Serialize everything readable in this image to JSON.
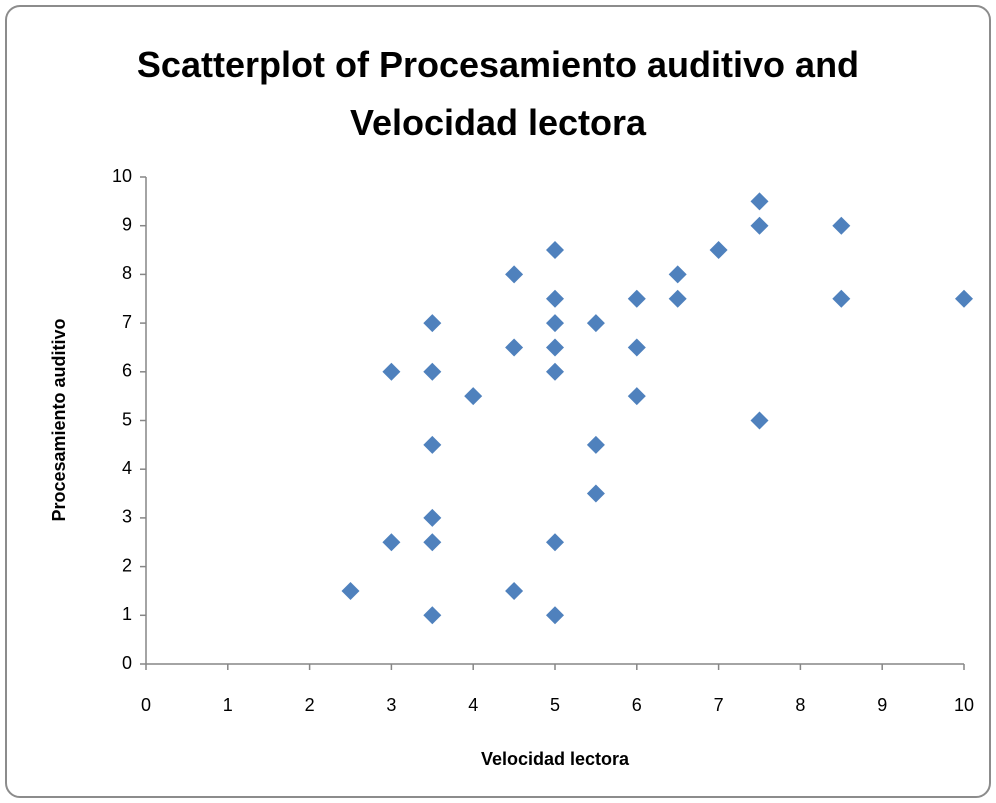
{
  "chart_data": {
    "type": "scatter",
    "title": "Scatterplot of Procesamiento auditivo and Velocidad lectora",
    "xlabel": "Velocidad lectora",
    "ylabel": "Procesamiento auditivo",
    "xlim": [
      0,
      10
    ],
    "xticks": [
      0,
      1,
      2,
      3,
      4,
      5,
      6,
      7,
      8,
      9,
      10
    ],
    "ylim": [
      0,
      10
    ],
    "yticks": [
      0,
      1,
      2,
      3,
      4,
      5,
      6,
      7,
      8,
      9,
      10
    ],
    "grid": false,
    "series": [
      {
        "color": "#4f81bd",
        "x": [
          2.5,
          3,
          3,
          3.5,
          3.5,
          3.5,
          3.5,
          3.5,
          3.5,
          4,
          4.5,
          4.5,
          4.5,
          5,
          5,
          5,
          5,
          5,
          5,
          5,
          5.5,
          5.5,
          5.5,
          6,
          6,
          6,
          6.5,
          6.5,
          7,
          7.5,
          7.5,
          7.5,
          8.5,
          8.5,
          10
        ],
        "values": [
          1.5,
          6,
          2.5,
          7,
          6,
          4.5,
          3,
          2.5,
          1,
          5.5,
          8,
          6.5,
          1.5,
          8.5,
          7.5,
          7,
          6.5,
          6,
          2.5,
          1,
          7,
          4.5,
          3.5,
          7.5,
          6.5,
          5.5,
          8,
          7.5,
          8.5,
          9.5,
          9,
          5,
          9,
          7.5,
          7.5
        ]
      }
    ]
  }
}
